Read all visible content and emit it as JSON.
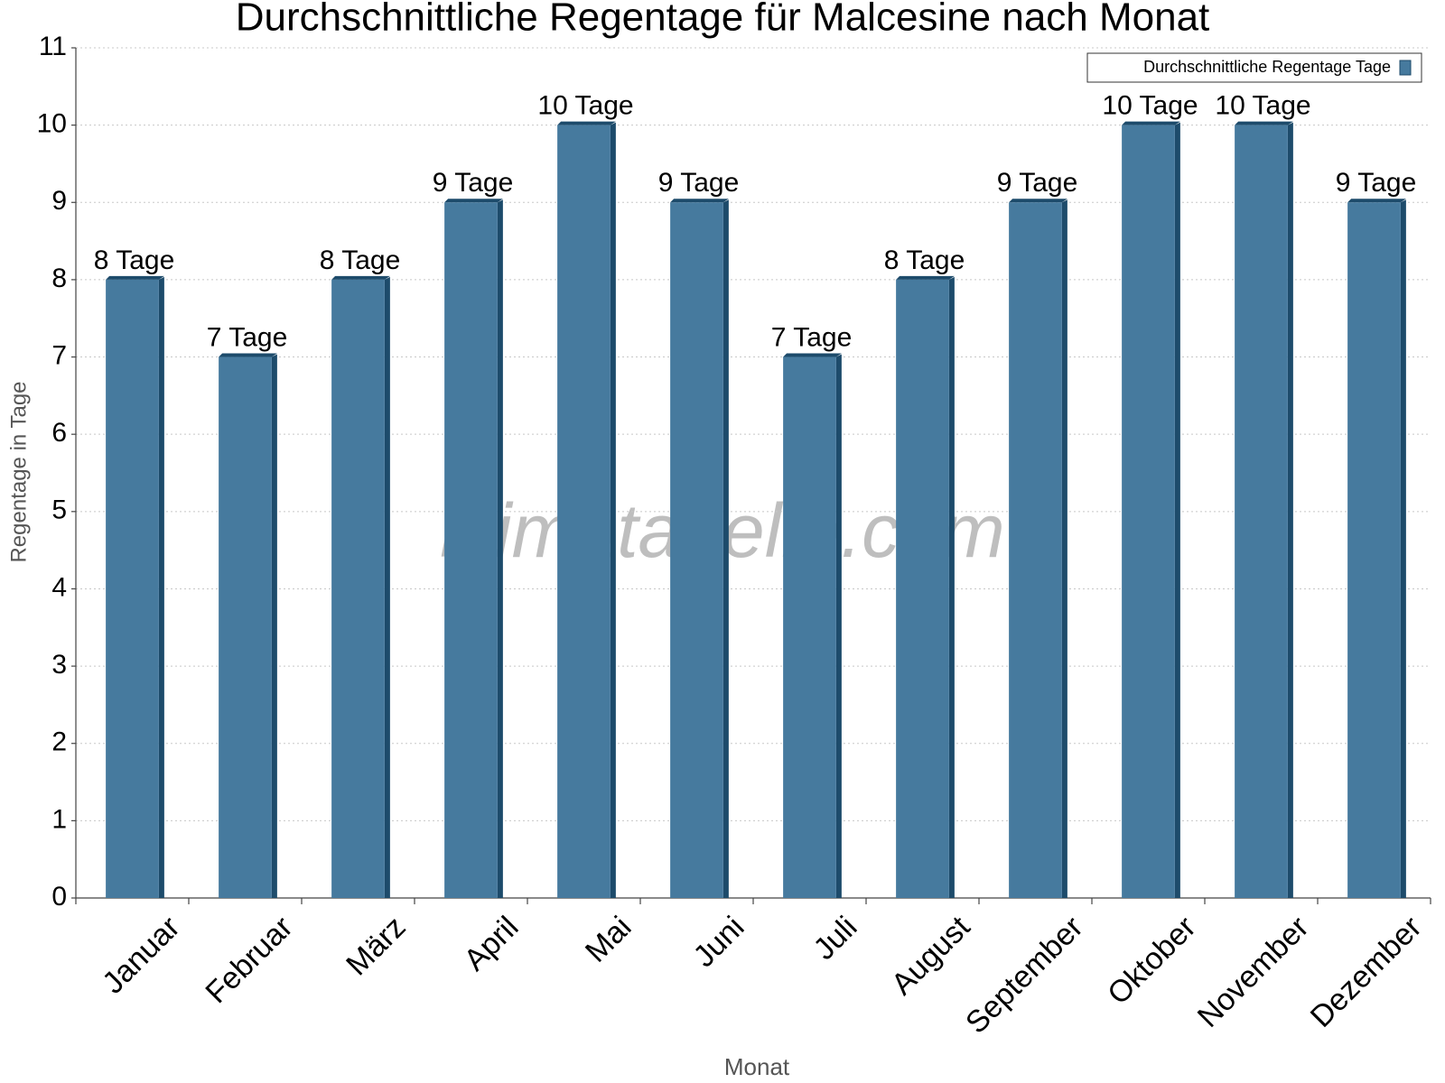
{
  "chart_data": {
    "type": "bar",
    "title": "Durchschnittliche Regentage für Malcesine nach Monat",
    "x_label": "Monat",
    "y_label": "Regentage in Tage",
    "watermark": "klimatabelle.com",
    "categories": [
      "Januar",
      "Februar",
      "März",
      "April",
      "Mai",
      "Juni",
      "Juli",
      "August",
      "September",
      "Oktober",
      "November",
      "Dezember"
    ],
    "series": [
      {
        "name": "Durchschnittliche Regentage Tage",
        "color": "#467a9e",
        "values": [
          8,
          7,
          8,
          9,
          10,
          9,
          7,
          8,
          9,
          10,
          10,
          9
        ],
        "value_labels": [
          "8 Tage",
          "7 Tage",
          "8 Tage",
          "9 Tage",
          "10 Tage",
          "9 Tage",
          "7 Tage",
          "8 Tage",
          "9 Tage",
          "10 Tage",
          "10 Tage",
          "9 Tage"
        ]
      }
    ],
    "ylim": [
      0,
      11
    ],
    "yticks": [
      0,
      1,
      2,
      3,
      4,
      5,
      6,
      7,
      8,
      9,
      10,
      11
    ],
    "grid": true,
    "legend": "upper right"
  }
}
